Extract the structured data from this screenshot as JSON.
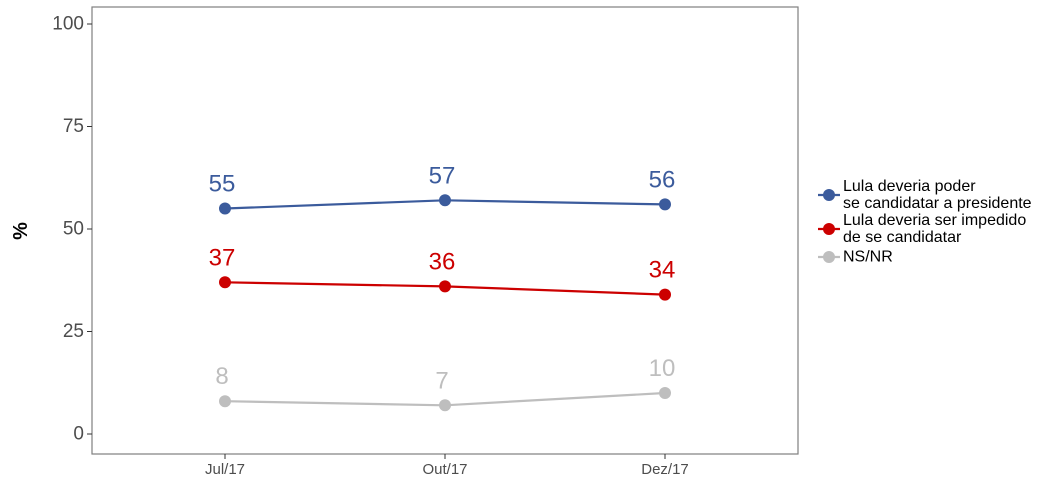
{
  "chart_data": {
    "type": "line",
    "categories": [
      "Jul/17",
      "Out/17",
      "Dez/17"
    ],
    "ylabel": "%",
    "xlabel": "",
    "ylim": [
      0,
      100
    ],
    "yticks": [
      0,
      25,
      50,
      75,
      100
    ],
    "grid": false,
    "legend_position": "right",
    "series": [
      {
        "name": "Lula deveria poder se candidatar a presidente",
        "legend_lines": [
          "Lula deveria poder",
          "se candidatar a presidente"
        ],
        "values": [
          55,
          57,
          56
        ],
        "color": "#3B5B9C"
      },
      {
        "name": "Lula deveria ser impedido de se candidatar",
        "legend_lines": [
          "Lula deveria ser impedido",
          "de se candidatar"
        ],
        "values": [
          37,
          36,
          34
        ],
        "color": "#CC0000"
      },
      {
        "name": "NS/NR",
        "legend_lines": [
          "NS/NR"
        ],
        "values": [
          8,
          7,
          10
        ],
        "color": "#BEBEBE"
      }
    ]
  }
}
